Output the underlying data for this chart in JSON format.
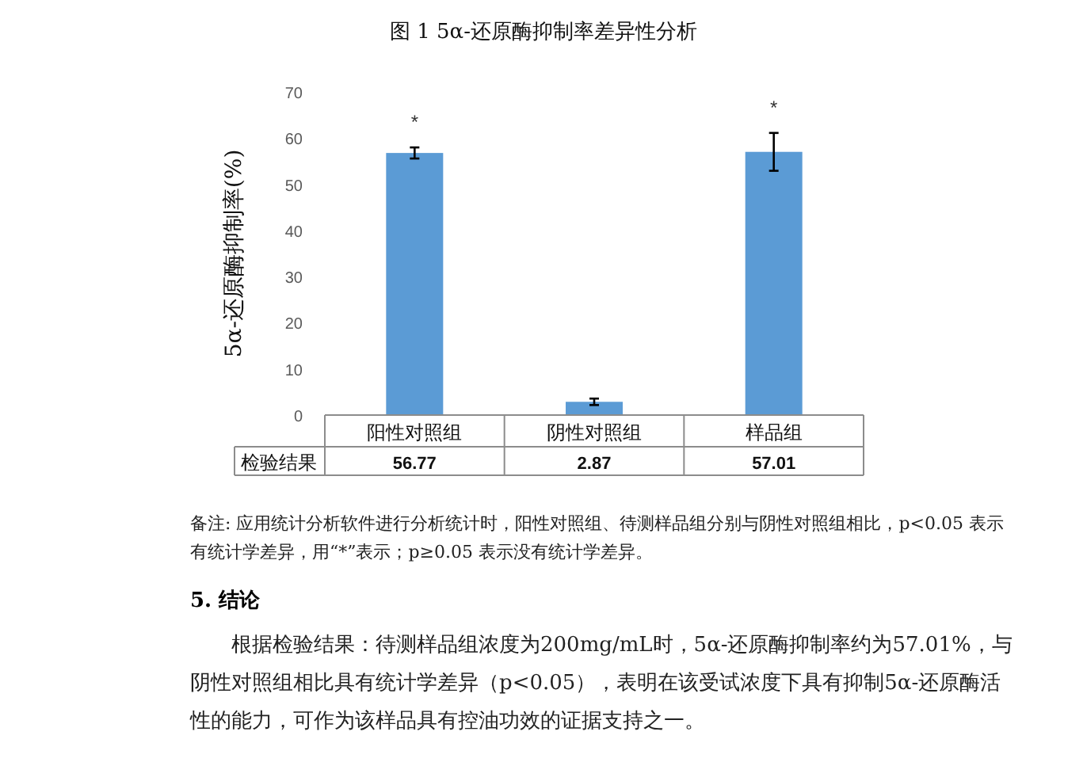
{
  "chart_data": {
    "type": "bar",
    "title": "图 1  5α-还原酶抑制率差异性分析",
    "ylabel": "5α-还原酶抑制率(%)",
    "categories": [
      "阳性对照组",
      "阴性对照组",
      "样品组"
    ],
    "values": [
      56.77,
      2.87,
      57.01
    ],
    "errors": [
      1.2,
      0.7,
      4.1
    ],
    "color": "#5b9bd5",
    "ylim": [
      0,
      70
    ],
    "yticks": [
      0,
      10,
      20,
      30,
      40,
      50,
      60,
      70
    ],
    "data_labels": true,
    "annotations": [
      "*",
      "*",
      "检验结果",
      "备注: 应用统计分析软件进行分析统计时，阳性对照组、待测样品组分别与阴性对照组相比，p<0.05 表示有统计学差异，用“*”表示；p≥0.05 表示没有统计学差异。",
      "5.    结论",
      "根据检验结果：待测样品组浓度为200mg/mL时，5α-还原酶抑制率约为57.01%，与阴性对照组相比具有统计学差异（p<0.05），表明在该受试浓度下具有抑制5α-还原酶活性的能力，可作为该样品具有控油功效的证据支持之一。"
    ]
  }
}
